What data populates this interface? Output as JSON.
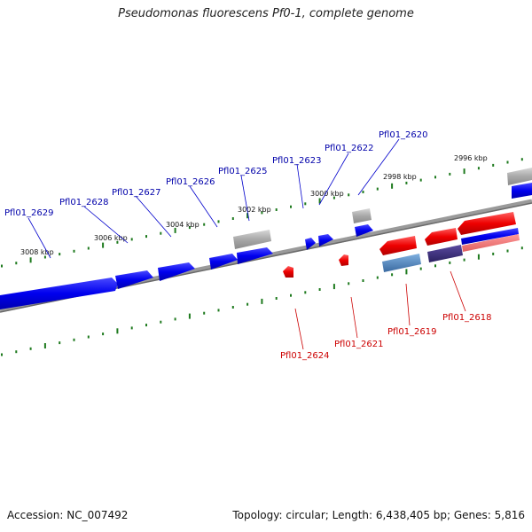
{
  "title": "Pseudomonas fluorescens Pf0-1, complete genome",
  "footer": {
    "accession": "Accession: NC_007492",
    "stats": "Topology: circular; Length: 6,438,405 bp; Genes: 5,816"
  },
  "colors": {
    "forward": "#0000ee",
    "reverse": "#ee0000",
    "other": "#a0a0a0",
    "tick": "#1e7a1e",
    "backbone": "#808080",
    "label_forward": "#0000aa",
    "label_reverse": "#cc0000"
  },
  "scale_labels": [
    "3008 kbp",
    "3006 kbp",
    "3004 kbp",
    "3002 kbp",
    "3000 kbp",
    "2998 kbp",
    "2996 kbp"
  ],
  "gene_labels_top": [
    "Pfl01_2629",
    "Pfl01_2628",
    "Pfl01_2627",
    "Pfl01_2626",
    "Pfl01_2625",
    "Pfl01_2623",
    "Pfl01_2622",
    "Pfl01_2620"
  ],
  "gene_labels_bottom": [
    "Pfl01_2624",
    "Pfl01_2621",
    "Pfl01_2619",
    "Pfl01_2618"
  ]
}
